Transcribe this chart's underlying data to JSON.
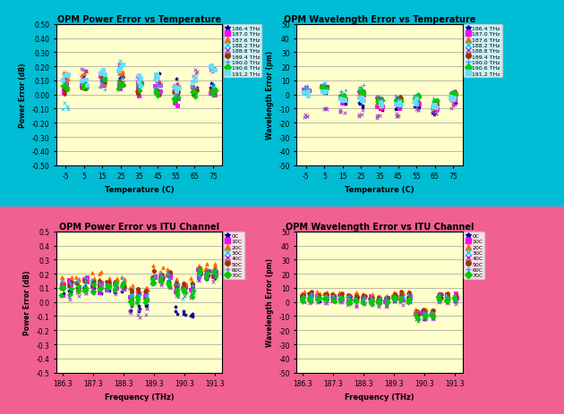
{
  "top_bg": "#00bcd4",
  "bot_bg": "#f06090",
  "plot_bg": "#ffffcc",
  "title1": "OPM Power Error vs Temperature",
  "title2": "OPM Wavelength Error vs Temperature",
  "title3": "OPM Power Error vs ITU Channel",
  "title4": "OPM Wavelength Error vs ITU Channel",
  "xlabel_temp": "Temperature (C)",
  "ylabel_power": "Power Error (dB)",
  "ylabel_wave": "Wavelength Error (pm)",
  "xlabel_freq": "Frequency (THz)",
  "temp_x": [
    -5,
    5,
    15,
    25,
    35,
    45,
    55,
    65,
    75
  ],
  "freq_x": [
    186.3,
    186.55,
    186.8,
    187.05,
    187.3,
    187.55,
    187.8,
    188.05,
    188.3,
    188.55,
    188.8,
    189.05,
    189.3,
    189.55,
    189.8,
    190.05,
    190.3,
    190.55,
    190.8,
    191.05,
    191.3
  ],
  "freq_xticks": [
    186.3,
    187.3,
    188.3,
    189.3,
    190.3,
    191.3
  ],
  "freq_channels": [
    {
      "label": "186.4 THz",
      "color": "#000099",
      "marker": "*"
    },
    {
      "label": "187.0 THz",
      "color": "#ff00ff",
      "marker": "s"
    },
    {
      "label": "187.6 THz",
      "color": "#ff6600",
      "marker": "^"
    },
    {
      "label": "188.2 THz",
      "color": "#00ccff",
      "marker": "x"
    },
    {
      "label": "188.8 THz",
      "color": "#9933cc",
      "marker": "x"
    },
    {
      "label": "189.4 THz",
      "color": "#993300",
      "marker": "o"
    },
    {
      "label": "190.0 THz",
      "color": "#3399ff",
      "marker": "+"
    },
    {
      "label": "190.6 THz",
      "color": "#00cc00",
      "marker": "D"
    },
    {
      "label": "191.2 THz",
      "color": "#66ddff",
      "marker": "s"
    }
  ],
  "temp_conditions": [
    {
      "label": "0C",
      "color": "#000099",
      "marker": "*"
    },
    {
      "label": "10C",
      "color": "#ff00ff",
      "marker": "s"
    },
    {
      "label": "20C",
      "color": "#ff6600",
      "marker": "^"
    },
    {
      "label": "30C",
      "color": "#00ccff",
      "marker": "x"
    },
    {
      "label": "40C",
      "color": "#9933cc",
      "marker": "x"
    },
    {
      "label": "50C",
      "color": "#993300",
      "marker": "o"
    },
    {
      "label": "60C",
      "color": "#3399ff",
      "marker": "+"
    },
    {
      "label": "70C",
      "color": "#00cc00",
      "marker": "D"
    }
  ],
  "power1_base": [
    [
      0.08,
      0.1,
      0.08,
      0.12,
      0.07,
      0.1,
      0.08,
      0.02,
      0.05
    ],
    [
      0.06,
      0.08,
      0.09,
      0.05,
      0.03,
      0.06,
      -0.05,
      0.02,
      0.02
    ],
    [
      0.12,
      0.14,
      0.1,
      0.15,
      0.1,
      0.09,
      0.05,
      0.03,
      0.04
    ],
    [
      -0.1,
      0.06,
      0.09,
      0.22,
      0.1,
      0.05,
      -0.01,
      0.05,
      0.05
    ],
    [
      0.14,
      0.16,
      0.13,
      0.22,
      0.12,
      0.08,
      0.05,
      0.15,
      0.19
    ],
    [
      0.04,
      0.05,
      0.1,
      0.09,
      0.03,
      0.02,
      0.01,
      0.02,
      0.02
    ],
    [
      0.09,
      0.08,
      0.07,
      0.1,
      0.06,
      0.04,
      0.03,
      0.01,
      0.04
    ],
    [
      0.04,
      0.05,
      0.09,
      0.09,
      0.04,
      0.01,
      -0.04,
      0.02,
      0.02
    ],
    [
      0.15,
      0.09,
      0.14,
      0.2,
      0.12,
      0.12,
      0.05,
      0.1,
      0.18
    ]
  ],
  "wave1_base": [
    [
      3,
      1,
      -5,
      -8,
      -10,
      -10,
      -8,
      -12,
      -5
    ],
    [
      4,
      5,
      -4,
      -2,
      -8,
      -8,
      -6,
      -9,
      -3
    ],
    [
      2,
      4,
      -3,
      0,
      -6,
      -6,
      -4,
      -8,
      -2
    ],
    [
      4,
      7,
      -2,
      2,
      -5,
      -5,
      -2,
      -5,
      0
    ],
    [
      -15,
      -10,
      -12,
      -14,
      -15,
      -15,
      -10,
      -12,
      -8
    ],
    [
      2,
      5,
      -1,
      3,
      -3,
      -3,
      -1,
      -4,
      1
    ],
    [
      4,
      7,
      1,
      5,
      -2,
      -2,
      0,
      -3,
      2
    ],
    [
      2,
      4,
      -1,
      2,
      -4,
      -4,
      -2,
      -5,
      0
    ],
    [
      1,
      2,
      -4,
      -2,
      -7,
      -7,
      -5,
      -8,
      -3
    ]
  ],
  "power2_base": [
    [
      0.06,
      0.08,
      0.08,
      0.09,
      0.09,
      0.09,
      0.09,
      0.09,
      0.09,
      -0.04,
      -0.04,
      -0.04,
      0.15,
      0.15,
      0.15,
      -0.08,
      -0.08,
      -0.08,
      0.18,
      0.18,
      0.18
    ],
    [
      0.12,
      0.12,
      0.12,
      0.13,
      0.13,
      0.13,
      0.12,
      0.12,
      0.12,
      0.05,
      0.05,
      0.05,
      0.17,
      0.17,
      0.17,
      0.1,
      0.1,
      0.1,
      0.2,
      0.2,
      0.2
    ],
    [
      0.16,
      0.16,
      0.16,
      0.17,
      0.17,
      0.17,
      0.15,
      0.15,
      0.15,
      0.08,
      0.08,
      0.08,
      0.22,
      0.22,
      0.22,
      0.14,
      0.14,
      0.14,
      0.24,
      0.24,
      0.24
    ],
    [
      0.1,
      0.1,
      0.1,
      0.12,
      0.12,
      0.12,
      0.11,
      0.11,
      0.11,
      0.02,
      0.02,
      0.02,
      0.17,
      0.17,
      0.17,
      0.08,
      0.08,
      0.08,
      0.21,
      0.21,
      0.21
    ],
    [
      0.04,
      0.04,
      0.04,
      0.09,
      0.09,
      0.09,
      0.08,
      0.08,
      0.08,
      -0.06,
      -0.06,
      -0.06,
      0.13,
      0.13,
      0.13,
      0.04,
      0.04,
      0.04,
      0.18,
      0.18,
      0.18
    ],
    [
      0.13,
      0.13,
      0.13,
      0.14,
      0.14,
      0.14,
      0.14,
      0.14,
      0.14,
      0.07,
      0.07,
      0.07,
      0.19,
      0.19,
      0.19,
      0.12,
      0.12,
      0.12,
      0.22,
      0.22,
      0.22
    ],
    [
      0.12,
      0.12,
      0.12,
      0.13,
      0.13,
      0.13,
      0.13,
      0.13,
      0.13,
      0.05,
      0.05,
      0.05,
      0.18,
      0.18,
      0.18,
      0.1,
      0.1,
      0.1,
      0.21,
      0.21,
      0.21
    ],
    [
      0.08,
      0.08,
      0.08,
      0.1,
      0.1,
      0.1,
      0.1,
      0.1,
      0.1,
      0.01,
      0.01,
      0.01,
      0.15,
      0.15,
      0.15,
      0.07,
      0.07,
      0.07,
      0.2,
      0.2,
      0.2
    ]
  ],
  "wave2_base": [
    [
      2,
      2,
      2,
      2,
      2,
      2,
      1,
      1,
      1,
      0,
      0,
      0,
      2,
      2,
      2,
      -10,
      -10,
      -10,
      2,
      2,
      2
    ],
    [
      4,
      4,
      4,
      4,
      4,
      4,
      3,
      3,
      3,
      2,
      2,
      2,
      4,
      4,
      4,
      -8,
      -8,
      -8,
      4,
      4,
      4
    ],
    [
      6,
      6,
      6,
      6,
      6,
      6,
      5,
      5,
      5,
      4,
      4,
      4,
      6,
      6,
      6,
      -6,
      -6,
      -6,
      6,
      6,
      6
    ],
    [
      3,
      3,
      3,
      3,
      3,
      3,
      2,
      2,
      2,
      1,
      1,
      1,
      3,
      3,
      3,
      -9,
      -9,
      -9,
      3,
      3,
      3
    ],
    [
      0,
      0,
      0,
      0,
      0,
      0,
      -1,
      -1,
      -1,
      -2,
      -2,
      -2,
      0,
      0,
      0,
      -12,
      -12,
      -12,
      0,
      0,
      0
    ],
    [
      5,
      5,
      5,
      5,
      5,
      5,
      4,
      4,
      4,
      3,
      3,
      3,
      5,
      5,
      5,
      -7,
      -7,
      -7,
      5,
      5,
      5
    ],
    [
      4,
      4,
      4,
      4,
      4,
      4,
      3,
      3,
      3,
      2,
      2,
      2,
      4,
      4,
      4,
      -8,
      -8,
      -8,
      4,
      4,
      4
    ],
    [
      2,
      2,
      2,
      2,
      2,
      2,
      1,
      1,
      1,
      0,
      0,
      0,
      2,
      2,
      2,
      -10,
      -10,
      -10,
      2,
      2,
      2
    ]
  ]
}
